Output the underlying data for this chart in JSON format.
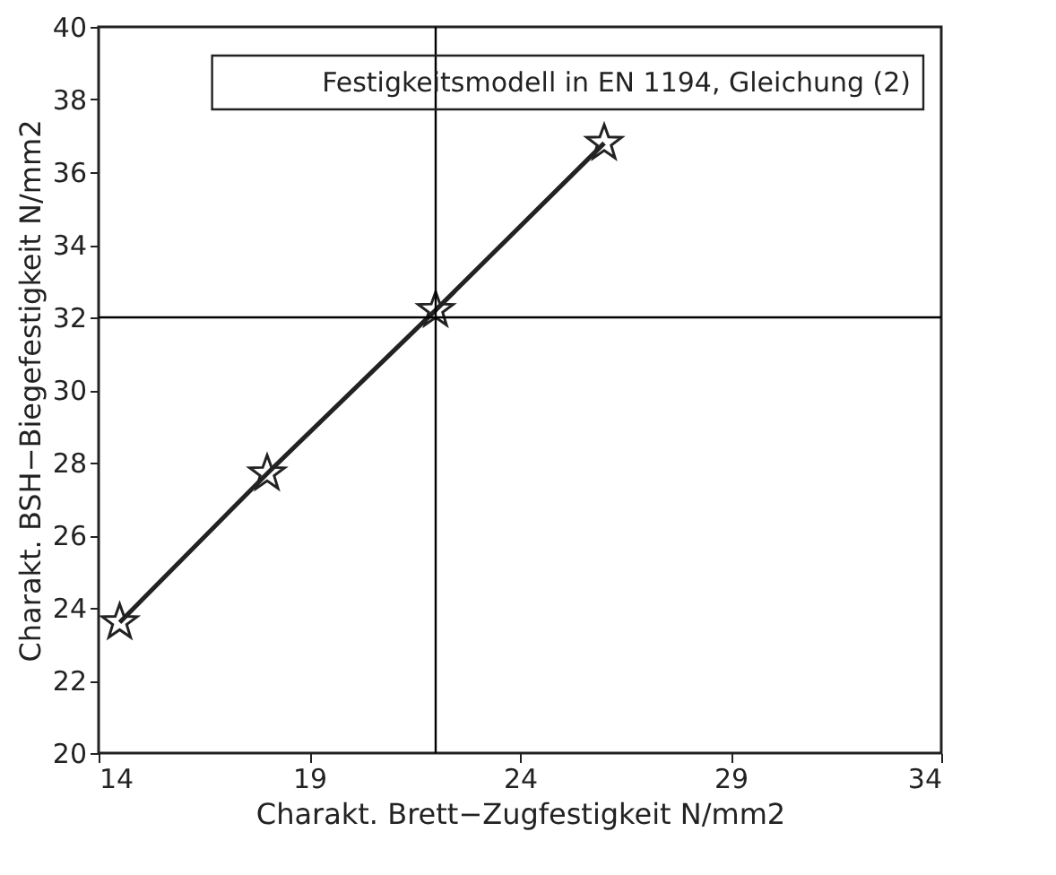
{
  "chart_data": {
    "type": "line",
    "xlabel": "Charakt. Brett−Zugfestigkeit N/mm2",
    "ylabel": "Charakt. BSH−Biegefestigkeit N/mm2",
    "x": [
      14.5,
      18,
      22,
      26
    ],
    "series": [
      {
        "color": "#222222",
        "values": [
          23.6,
          27.7,
          32.2,
          36.8
        ]
      }
    ],
    "marker": "star",
    "line_style": "solid",
    "xlim": [
      14,
      34
    ],
    "xticks": [
      14,
      19,
      24,
      29,
      34
    ],
    "ylim": [
      20,
      40
    ],
    "yticks": [
      20,
      22,
      24,
      26,
      28,
      30,
      32,
      34,
      36,
      38,
      40
    ],
    "ref_lines": [
      {
        "axis": "x",
        "value": 22,
        "color": "#000000"
      },
      {
        "axis": "y",
        "value": 32,
        "color": "#000000"
      }
    ],
    "annotations": [
      "Festigkeitsmodell in EN 1194, Gleichung (2)"
    ],
    "grid": false
  }
}
